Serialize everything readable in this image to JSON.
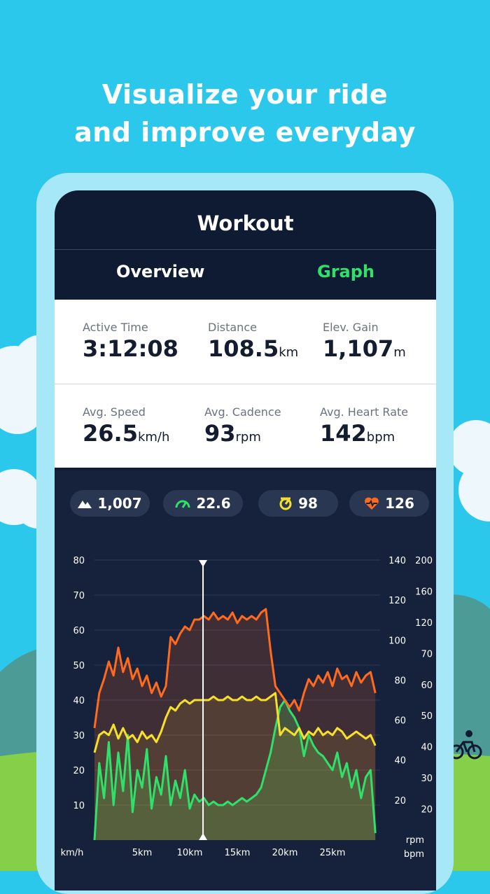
{
  "headline": {
    "line1": "Visualize your ride",
    "line2": "and improve everyday"
  },
  "header": {
    "title": "Workout"
  },
  "tabs": [
    {
      "label": "Overview",
      "active": false
    },
    {
      "label": "Graph",
      "active": true
    }
  ],
  "stats": [
    {
      "label": "Active Time",
      "value": "3:12:08",
      "unit": ""
    },
    {
      "label": "Distance",
      "value": "108.5",
      "unit": "km"
    },
    {
      "label": "Elev. Gain",
      "value": "1,107",
      "unit": "m"
    },
    {
      "label": "Avg. Speed",
      "value": "26.5",
      "unit": "km/h"
    },
    {
      "label": "Avg. Cadence",
      "value": "93",
      "unit": "rpm"
    },
    {
      "label": "Avg. Heart Rate",
      "value": "142",
      "unit": "bpm"
    }
  ],
  "pills": [
    {
      "icon": "mountain-icon",
      "value": "1,007",
      "color": "#ffffff"
    },
    {
      "icon": "speedometer-icon",
      "value": "22.6",
      "color": "#2fe06b"
    },
    {
      "icon": "cadence-icon",
      "value": "98",
      "color": "#f7e02a"
    },
    {
      "icon": "heart-rate-icon",
      "value": "126",
      "color": "#ff6a1f"
    }
  ],
  "chart_data": {
    "type": "line",
    "x_ticks": [
      "km/h",
      "5km",
      "10km",
      "15km",
      "20km",
      "25km"
    ],
    "y_left_ticks": [
      "80",
      "70",
      "60",
      "50",
      "40",
      "30",
      "20",
      "10"
    ],
    "y_right1_ticks": [
      "140",
      "120",
      "100",
      "80",
      "60",
      "40",
      "20"
    ],
    "y_right1_unit": "rpm",
    "y_right2_ticks": [
      "200",
      "160",
      "120",
      "70",
      "60",
      "50",
      "40",
      "30",
      "20"
    ],
    "y_right2_unit": "bpm",
    "xlim": [
      0,
      30
    ],
    "ylim": [
      0,
      80
    ],
    "cursor_x": 11.4,
    "series": [
      {
        "color": "#2fe06b",
        "x": [
          0,
          0.5,
          1,
          1.5,
          2,
          2.5,
          3,
          3.5,
          4,
          4.5,
          5,
          5.5,
          6,
          6.5,
          7,
          7.5,
          8,
          8.5,
          9,
          9.5,
          10,
          10.5,
          11,
          11.5,
          12,
          12.5,
          13,
          13.5,
          14,
          14.5,
          15,
          15.5,
          16,
          16.5,
          17,
          17.5,
          18,
          18.5,
          19,
          19.5,
          20,
          20.5,
          21,
          21.5,
          22,
          22.5,
          23,
          23.5,
          24,
          24.5,
          25,
          25.5,
          26,
          26.5,
          27,
          27.5,
          28,
          28.5,
          29,
          29.5
        ],
        "y": [
          0,
          22,
          12,
          28,
          10,
          25,
          14,
          30,
          8,
          20,
          15,
          26,
          9,
          18,
          13,
          24,
          10,
          17,
          12,
          20,
          9,
          13,
          11,
          12,
          10,
          11,
          10,
          10,
          11,
          10,
          11,
          12,
          11,
          12,
          13,
          15,
          20,
          25,
          32,
          38,
          40,
          37,
          35,
          32,
          24,
          30,
          27,
          25,
          24,
          22,
          20,
          25,
          18,
          22,
          15,
          20,
          12,
          18,
          20,
          2
        ]
      },
      {
        "color": "#f7e02a",
        "x": [
          0,
          0.5,
          1,
          1.5,
          2,
          2.5,
          3,
          3.5,
          4,
          4.5,
          5,
          5.5,
          6,
          6.5,
          7,
          7.5,
          8,
          8.5,
          9,
          9.5,
          10,
          10.5,
          11,
          11.5,
          12,
          12.5,
          13,
          13.5,
          14,
          14.5,
          15,
          15.5,
          16,
          16.5,
          17,
          17.5,
          18,
          18.5,
          19,
          19.5,
          20,
          20.5,
          21,
          21.5,
          22,
          22.5,
          23,
          23.5,
          24,
          24.5,
          25,
          25.5,
          26,
          26.5,
          27,
          27.5,
          28,
          28.5,
          29,
          29.5
        ],
        "y": [
          25,
          30,
          31,
          30,
          33,
          29,
          32,
          29,
          30,
          28,
          31,
          29,
          30,
          28,
          31,
          35,
          38,
          37,
          39,
          40,
          39,
          40,
          40,
          40,
          40,
          41,
          40,
          40,
          41,
          40,
          40,
          41,
          40,
          40,
          41,
          40,
          40,
          41,
          42,
          30,
          32,
          31,
          30,
          32,
          29,
          31,
          30,
          32,
          30,
          31,
          30,
          32,
          31,
          29,
          30,
          31,
          30,
          29,
          30,
          27
        ]
      },
      {
        "color": "#ff6a1f",
        "x": [
          0,
          0.5,
          1,
          1.5,
          2,
          2.5,
          3,
          3.5,
          4,
          4.5,
          5,
          5.5,
          6,
          6.5,
          7,
          7.5,
          8,
          8.5,
          9,
          9.5,
          10,
          10.5,
          11,
          11.5,
          12,
          12.5,
          13,
          13.5,
          14,
          14.5,
          15,
          15.5,
          16,
          16.5,
          17,
          17.5,
          18,
          18.5,
          19,
          19.5,
          20,
          20.5,
          21,
          21.5,
          22,
          22.5,
          23,
          23.5,
          24,
          24.5,
          25,
          25.5,
          26,
          26.5,
          27,
          27.5,
          28,
          28.5,
          29,
          29.5
        ],
        "y": [
          32,
          42,
          46,
          51,
          47,
          55,
          48,
          52,
          46,
          49,
          44,
          47,
          42,
          45,
          41,
          44,
          58,
          56,
          59,
          61,
          60,
          63,
          63,
          64,
          63,
          65,
          63,
          64,
          63,
          65,
          62,
          64,
          63,
          64,
          63,
          65,
          66,
          54,
          44,
          42,
          40,
          38,
          40,
          37,
          42,
          46,
          44,
          47,
          45,
          48,
          44,
          49,
          46,
          47,
          44,
          48,
          45,
          47,
          48,
          42
        ]
      }
    ]
  }
}
